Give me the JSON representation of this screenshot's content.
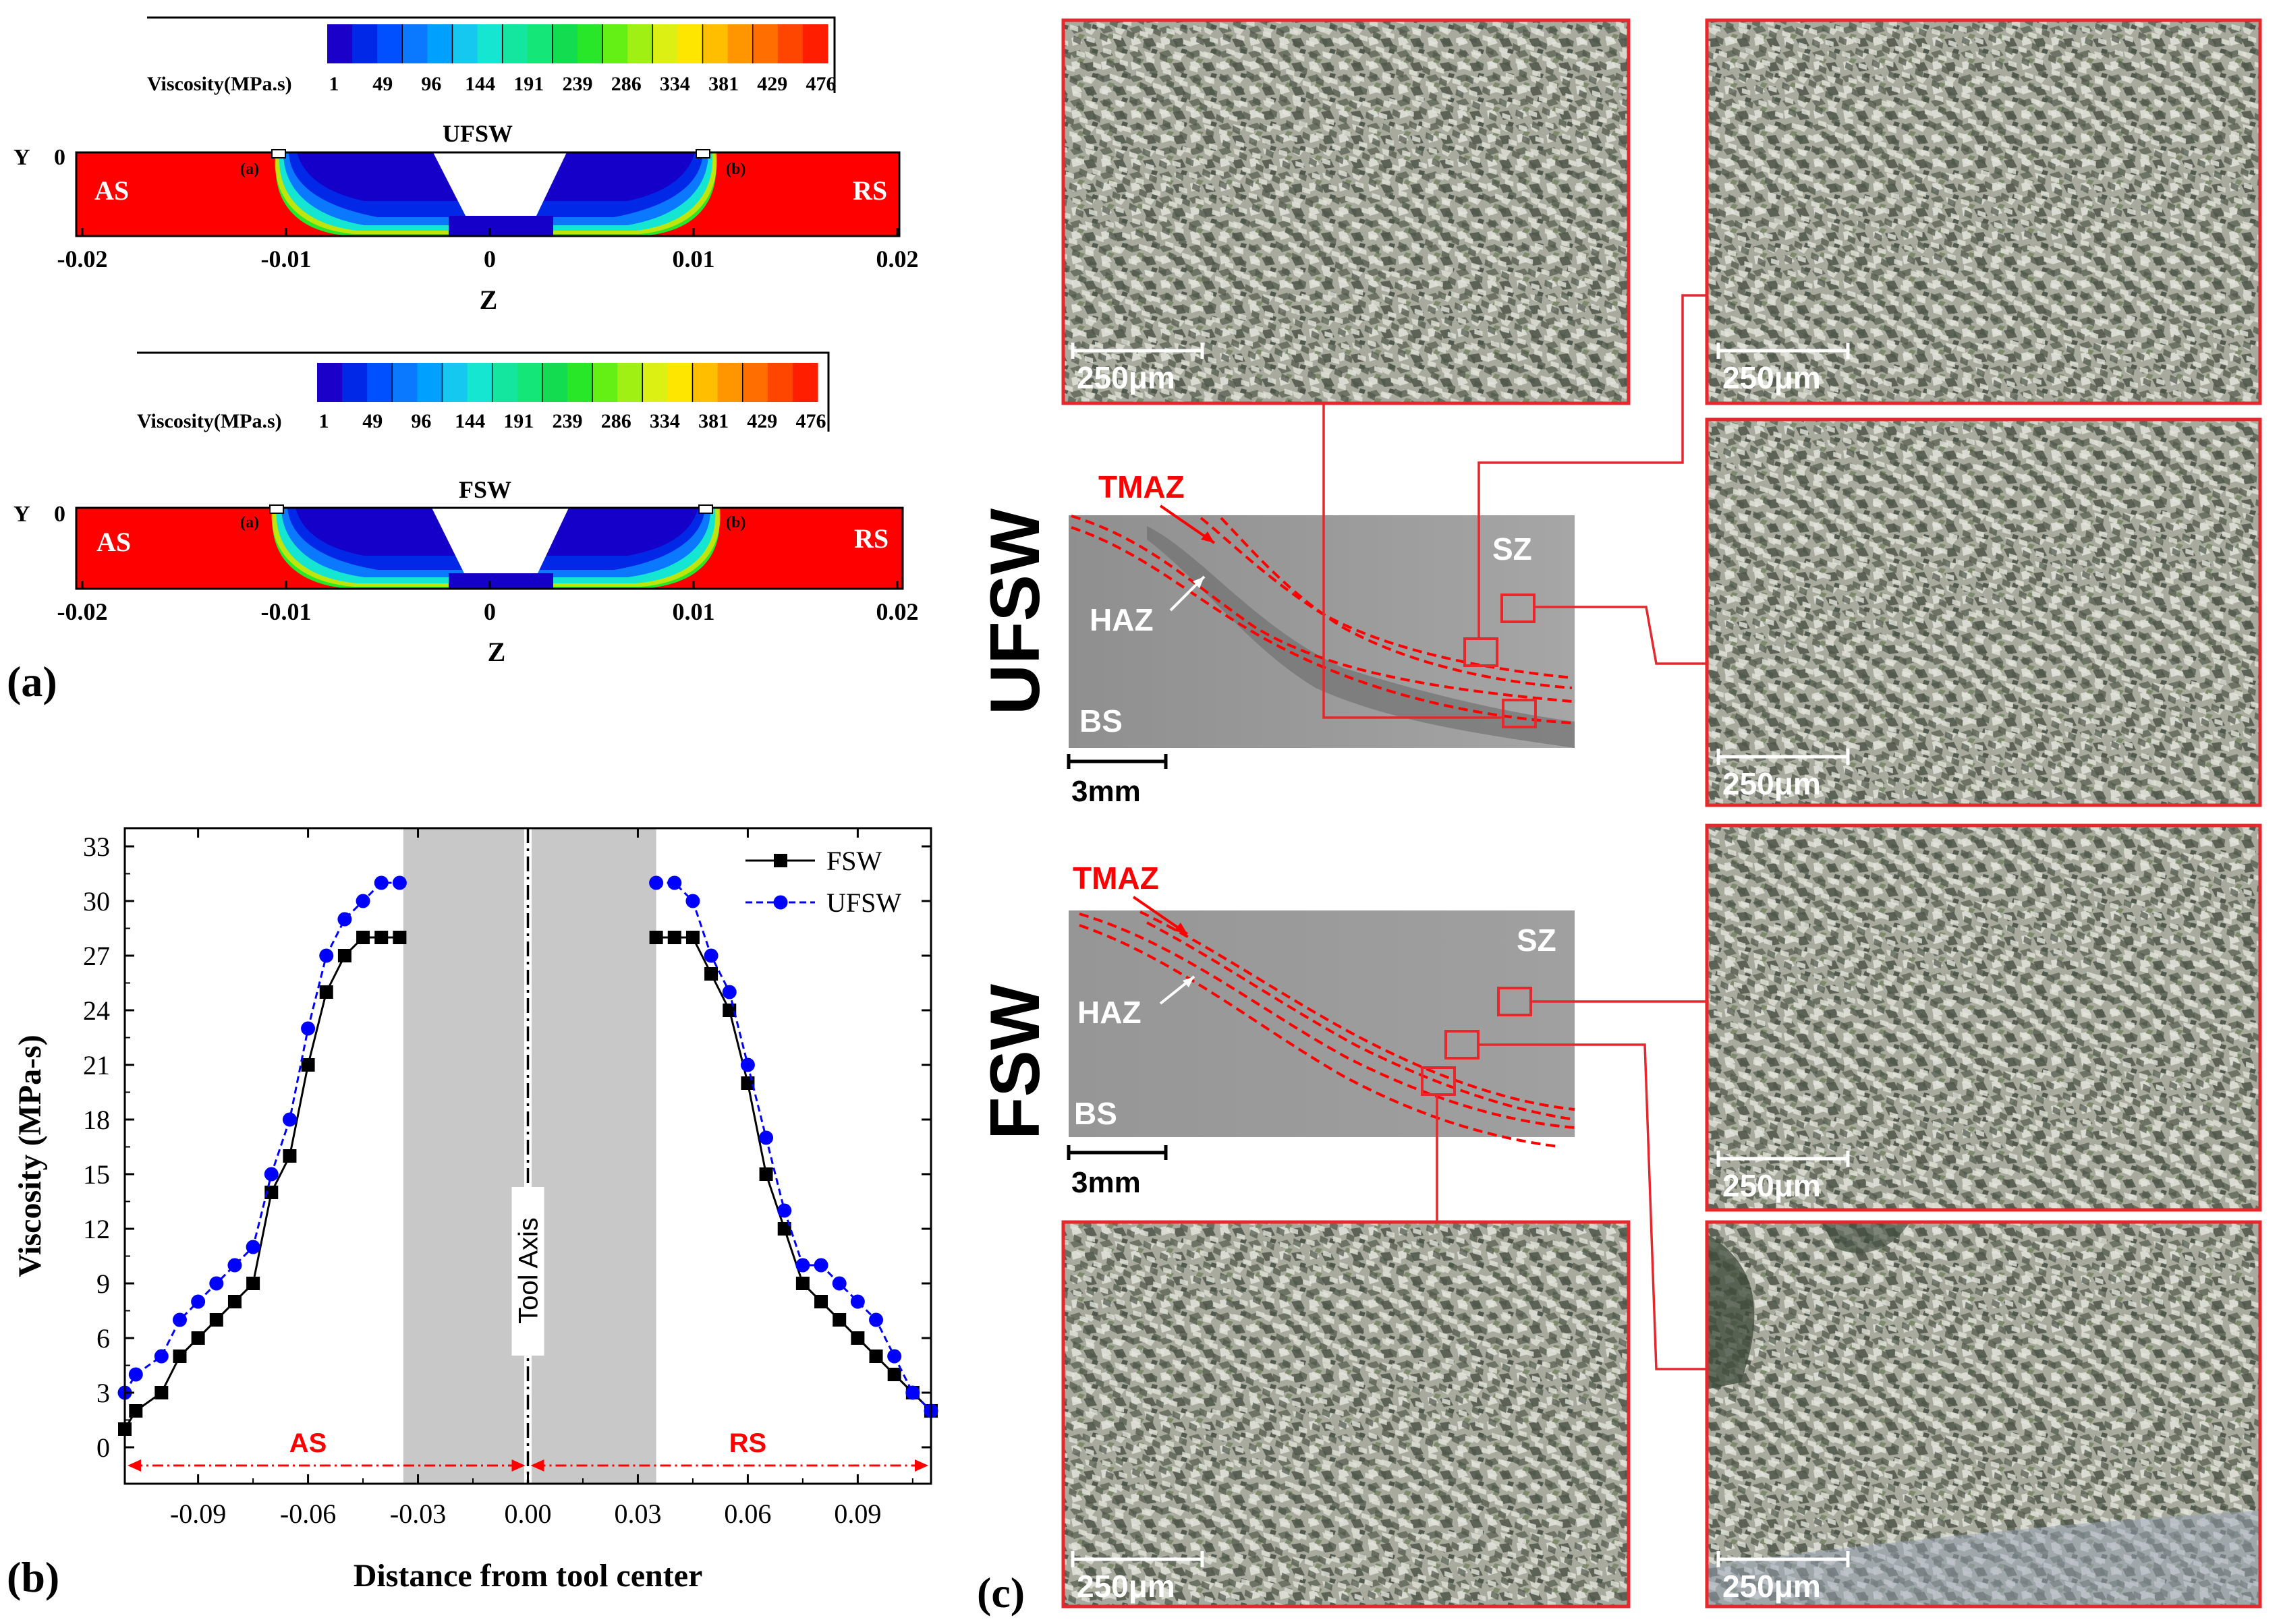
{
  "panel_a": {
    "label": "(a)",
    "colorbar": {
      "title": "Viscosity(MPa.s)",
      "tick_labels": [
        "1",
        "49",
        "96",
        "144",
        "191",
        "239",
        "286",
        "334",
        "381",
        "429",
        "476"
      ],
      "colors": [
        "#1a00c8",
        "#0028e6",
        "#0050ff",
        "#0a78ff",
        "#00a0ff",
        "#14c8f0",
        "#14e6d2",
        "#14e6a0",
        "#14e678",
        "#14dc50",
        "#28e628",
        "#64f014",
        "#a0f014",
        "#dcf014",
        "#ffe600",
        "#ffbe00",
        "#ff9600",
        "#ff6e00",
        "#ff4600",
        "#ff1e00"
      ]
    },
    "plots": [
      {
        "name": "UFSW",
        "title": "UFSW",
        "y_label": "Y",
        "y_tick": "0",
        "left_zone": "AS",
        "right_zone": "RS",
        "point_a": "(a)",
        "point_b": "(b)",
        "x_label": "Z",
        "x_ticks": [
          "-0.02",
          "-0.01",
          "0",
          "0.01",
          "0.02"
        ]
      },
      {
        "name": "FSW",
        "title": "FSW",
        "y_label": "Y",
        "y_tick": "0",
        "left_zone": "AS",
        "right_zone": "RS",
        "point_a": "(a)",
        "point_b": "(b)",
        "x_label": "Z",
        "x_ticks": [
          "-0.02",
          "-0.01",
          "0",
          "0.01",
          "0.02"
        ]
      }
    ],
    "colors": {
      "bulk": "#ff0000",
      "core": "#1400c8"
    }
  },
  "panel_b": {
    "label": "(b)",
    "axis_text": "Tool Axis",
    "as_label": "AS",
    "rs_label": "RS",
    "colors": {
      "fsw": "#000000",
      "ufsw": "#0000ff",
      "shade": "#c8c8c8",
      "arrow": "#ff0000"
    }
  },
  "chart_data": {
    "type": "line",
    "xlabel": "Distance from tool center",
    "ylabel": "Viscosity (MPa-s)",
    "xlim": [
      -0.11,
      0.11
    ],
    "ylim": [
      -2,
      34
    ],
    "x_ticks": [
      -0.09,
      -0.06,
      -0.03,
      0.0,
      0.03,
      0.06,
      0.09
    ],
    "x_tick_labels": [
      "-0.09",
      "-0.06",
      "-0.03",
      "0.00",
      "0.03",
      "0.06",
      "0.09"
    ],
    "y_ticks": [
      0,
      3,
      6,
      9,
      12,
      15,
      18,
      21,
      24,
      27,
      30,
      33
    ],
    "y_tick_labels": [
      "0",
      "3",
      "6",
      "9",
      "12",
      "15",
      "18",
      "21",
      "24",
      "27",
      "30",
      "33"
    ],
    "shaded_regions": [
      [
        -0.034,
        -0.001
      ],
      [
        0.001,
        0.035
      ]
    ],
    "legend_position": "top-right",
    "series": [
      {
        "name": "FSW",
        "color": "#000000",
        "marker": "square",
        "line": "solid",
        "segments": [
          {
            "x": [
              -0.11,
              -0.107,
              -0.1,
              -0.095,
              -0.09,
              -0.085,
              -0.08,
              -0.075,
              -0.07,
              -0.065,
              -0.06,
              -0.055,
              -0.05,
              -0.045,
              -0.04,
              -0.035
            ],
            "y": [
              1,
              2,
              3,
              5,
              6,
              7,
              8,
              9,
              14,
              16,
              21,
              25,
              27,
              28,
              28,
              28
            ]
          },
          {
            "x": [
              0.035,
              0.04,
              0.045,
              0.05,
              0.055,
              0.06,
              0.065,
              0.07,
              0.075,
              0.08,
              0.085,
              0.09,
              0.095,
              0.1,
              0.105,
              0.11
            ],
            "y": [
              28,
              28,
              28,
              26,
              24,
              20,
              15,
              12,
              9,
              8,
              7,
              6,
              5,
              4,
              3,
              2
            ]
          }
        ]
      },
      {
        "name": "UFSW",
        "color": "#0000ff",
        "marker": "circle",
        "line": "dashed",
        "segments": [
          {
            "x": [
              -0.11,
              -0.107,
              -0.1,
              -0.095,
              -0.09,
              -0.085,
              -0.08,
              -0.075,
              -0.07,
              -0.065,
              -0.06,
              -0.055,
              -0.05,
              -0.045,
              -0.04,
              -0.035
            ],
            "y": [
              3,
              4,
              5,
              7,
              8,
              9,
              10,
              11,
              15,
              18,
              23,
              27,
              29,
              30,
              31,
              31
            ]
          },
          {
            "x": [
              0.035,
              0.04,
              0.045,
              0.05,
              0.055,
              0.06,
              0.065,
              0.07,
              0.075,
              0.08,
              0.085,
              0.09,
              0.095,
              0.1,
              0.105,
              0.11
            ],
            "y": [
              31,
              31,
              30,
              27,
              25,
              21,
              17,
              13,
              10,
              10,
              9,
              8,
              7,
              5,
              3,
              2
            ]
          }
        ]
      }
    ]
  },
  "panel_c": {
    "label": "(c)",
    "ufsw": {
      "title": "UFSW",
      "tmaz": "TMAZ",
      "haz": "HAZ",
      "sz": "SZ",
      "bs": "BS",
      "scale": "3mm"
    },
    "fsw": {
      "title": "FSW",
      "tmaz": "TMAZ",
      "haz": "HAZ",
      "sz": "SZ",
      "bs": "BS",
      "scale": "3mm"
    },
    "micro_scale": [
      "250μm",
      "250μm",
      "250μm",
      "250μm",
      "250μm",
      "250μm"
    ],
    "colors": {
      "frame": "#e6282d",
      "dash": "#ff0000"
    }
  }
}
